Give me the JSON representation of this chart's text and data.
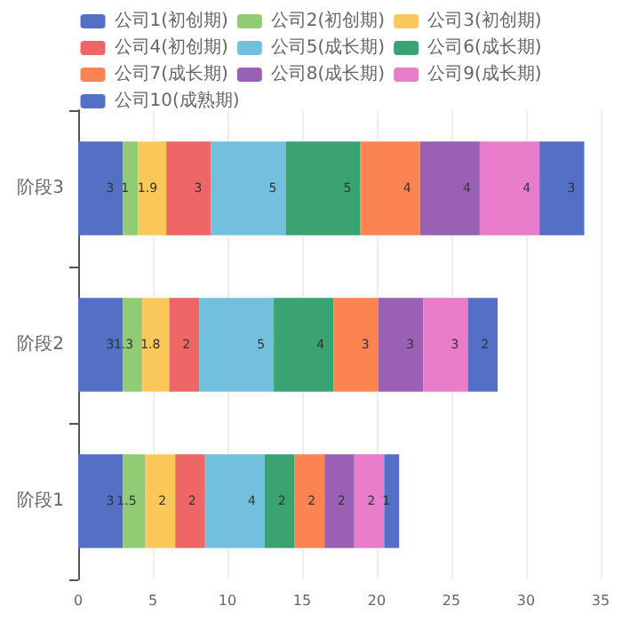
{
  "chart_data": {
    "type": "bar",
    "orientation": "horizontal",
    "stacked": true,
    "categories": [
      "阶段3",
      "阶段2",
      "阶段1"
    ],
    "series": [
      {
        "name": "公司1(初创期)",
        "color": "#5470c6",
        "values": [
          3,
          3,
          3
        ]
      },
      {
        "name": "公司2(初创期)",
        "color": "#91cc75",
        "values": [
          1,
          1.3,
          1.5
        ]
      },
      {
        "name": "公司3(初创期)",
        "color": "#fac858",
        "values": [
          1.9,
          1.8,
          2
        ]
      },
      {
        "name": "公司4(初创期)",
        "color": "#ee6666",
        "values": [
          3,
          2,
          2
        ]
      },
      {
        "name": "公司5(成长期)",
        "color": "#73c0de",
        "values": [
          5,
          5,
          4
        ]
      },
      {
        "name": "公司6(成长期)",
        "color": "#3ba272",
        "values": [
          5,
          4,
          2
        ]
      },
      {
        "name": "公司7(成长期)",
        "color": "#fc8452",
        "values": [
          4,
          3,
          2
        ]
      },
      {
        "name": "公司8(成长期)",
        "color": "#9a60b4",
        "values": [
          4,
          3,
          2
        ]
      },
      {
        "name": "公司9(成长期)",
        "color": "#ea7ccc",
        "values": [
          4,
          3,
          2
        ]
      },
      {
        "name": "公司10(成熟期)",
        "color": "#5470c6",
        "values": [
          3,
          2,
          1
        ]
      }
    ],
    "xlim": [
      0,
      35
    ],
    "xticks": [
      0,
      5,
      10,
      15,
      20,
      25,
      30,
      35
    ],
    "grid": "x",
    "legend": "top",
    "data_labels": true
  }
}
